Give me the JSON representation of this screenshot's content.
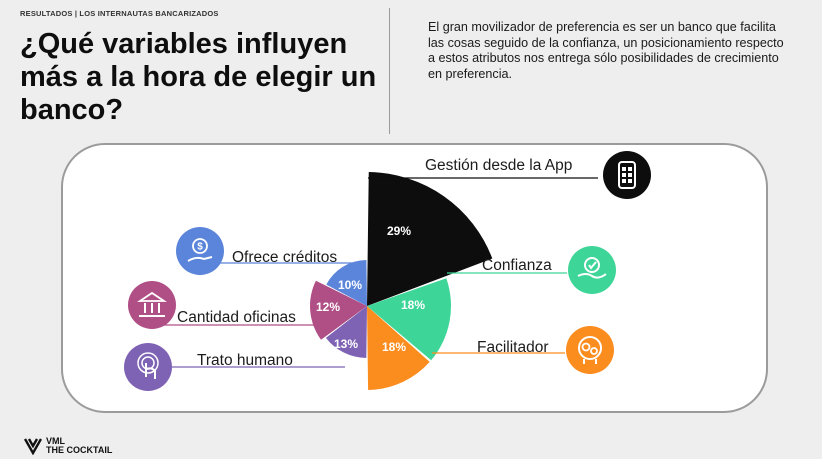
{
  "header": {
    "breadcrumb": "RESULTADOS | LOS INTERNAUTAS BANCARIZADOS",
    "title": "¿Qué variables influyen más a la hora de elegir un banco?",
    "summary": "El gran movilizador de preferencia es ser un banco que facilita las cosas seguido de la confianza, un posicionamiento respecto a estos atributos nos entrega sólo posibilidades de crecimiento en preferencia."
  },
  "chart_data": {
    "type": "pie",
    "subtype": "rose",
    "unit": "%",
    "series": [
      {
        "key": "app",
        "label": "Gestión desde la App",
        "value": 29,
        "value_label": "29%",
        "color": "#0d0d0d",
        "icon": "smartphone-app-icon"
      },
      {
        "key": "confianza",
        "label": "Confianza",
        "value": 18,
        "value_label": "18%",
        "color": "#3ed598",
        "icon": "trust-handshake-icon"
      },
      {
        "key": "facilitador",
        "label": "Facilitador",
        "value": 18,
        "value_label": "18%",
        "color": "#fb8c1e",
        "icon": "gears-head-icon"
      },
      {
        "key": "trato",
        "label": "Trato humano",
        "value": 13,
        "value_label": "13%",
        "color": "#7e63b4",
        "icon": "touch-hand-icon"
      },
      {
        "key": "oficinas",
        "label": "Cantidad oficinas",
        "value": 12,
        "value_label": "12%",
        "color": "#b04e86",
        "icon": "bank-building-icon"
      },
      {
        "key": "creditos",
        "label": "Ofrece créditos",
        "value": 10,
        "value_label": "10%",
        "color": "#5b85da",
        "icon": "money-credit-icon"
      }
    ]
  },
  "footer": {
    "brand_line1": "VML",
    "brand_line2": "THE COCKTAIL"
  }
}
